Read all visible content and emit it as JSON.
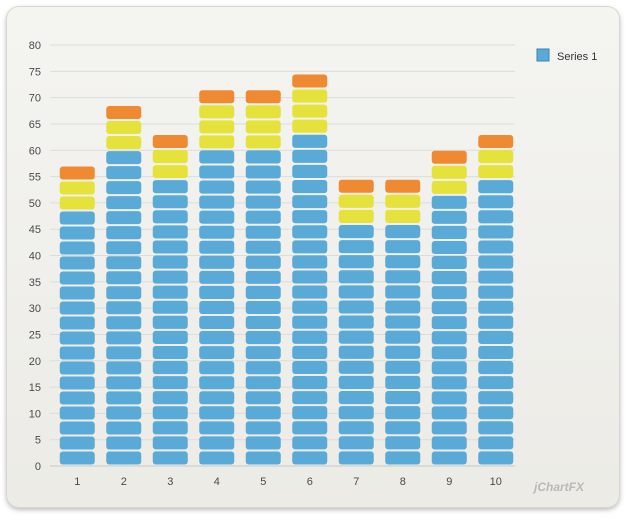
{
  "chart_data": {
    "type": "bar",
    "categories": [
      "1",
      "2",
      "3",
      "4",
      "5",
      "6",
      "7",
      "8",
      "9",
      "10"
    ],
    "values": [
      57,
      68.5,
      63,
      71.5,
      71.5,
      74.5,
      54.5,
      54.5,
      60,
      63
    ],
    "series": [
      {
        "name": "Series 1",
        "values": [
          57,
          68.5,
          63,
          71.5,
          71.5,
          74.5,
          54.5,
          54.5,
          60,
          63
        ]
      }
    ],
    "yticks": [
      0,
      5,
      10,
      15,
      20,
      25,
      30,
      35,
      40,
      45,
      50,
      55,
      60,
      65,
      70,
      75,
      80
    ],
    "ylim": [
      0,
      80
    ],
    "grid": true,
    "legend": "top-right",
    "band_colors": {
      "blue": "#5aaad8",
      "yellow": "#e6e23c",
      "orange": "#ef8a32"
    }
  },
  "brand": {
    "label": "jChartFX"
  }
}
